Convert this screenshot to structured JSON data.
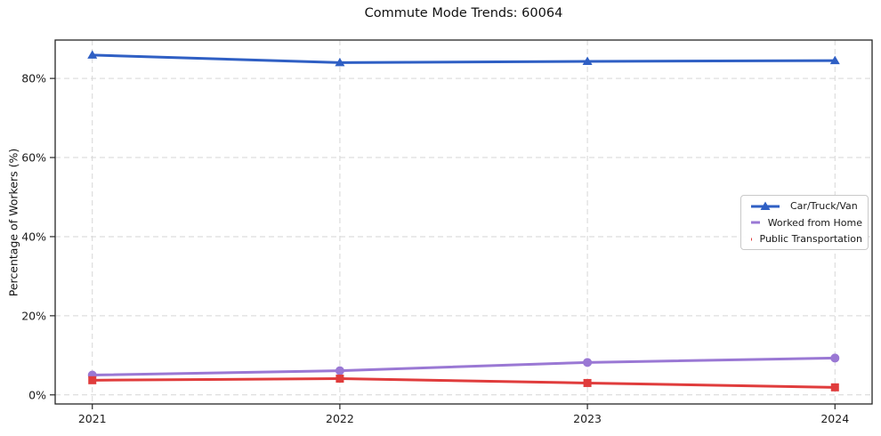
{
  "chart_data": {
    "type": "line",
    "title": "Commute Mode Trends: 60064",
    "xlabel": "",
    "ylabel": "Percentage of Workers (%)",
    "categories": [
      2021,
      2022,
      2023,
      2024
    ],
    "x_tick_labels": [
      "2021",
      "2022",
      "2023",
      "2024"
    ],
    "series": [
      {
        "name": "Car/Truck/Van",
        "marker": "triangle",
        "color": "#2f5fc4",
        "values": [
          85.9,
          84.0,
          84.3,
          84.5
        ]
      },
      {
        "name": "Worked from Home",
        "marker": "circle",
        "color": "#9a78d4",
        "values": [
          5.0,
          6.1,
          8.2,
          9.3
        ]
      },
      {
        "name": "Public Transportation",
        "marker": "square",
        "color": "#e03c3c",
        "values": [
          3.7,
          4.1,
          3.0,
          1.9
        ]
      }
    ],
    "y_ticks": [
      0,
      20,
      40,
      60,
      80
    ],
    "y_tick_labels": [
      "0%",
      "20%",
      "40%",
      "60%",
      "80%"
    ],
    "ylim": [
      -2.3,
      89.7
    ],
    "xlim": [
      2020.85,
      2024.15
    ],
    "grid": true,
    "grid_style": "dashed",
    "legend_position": "center-right"
  }
}
